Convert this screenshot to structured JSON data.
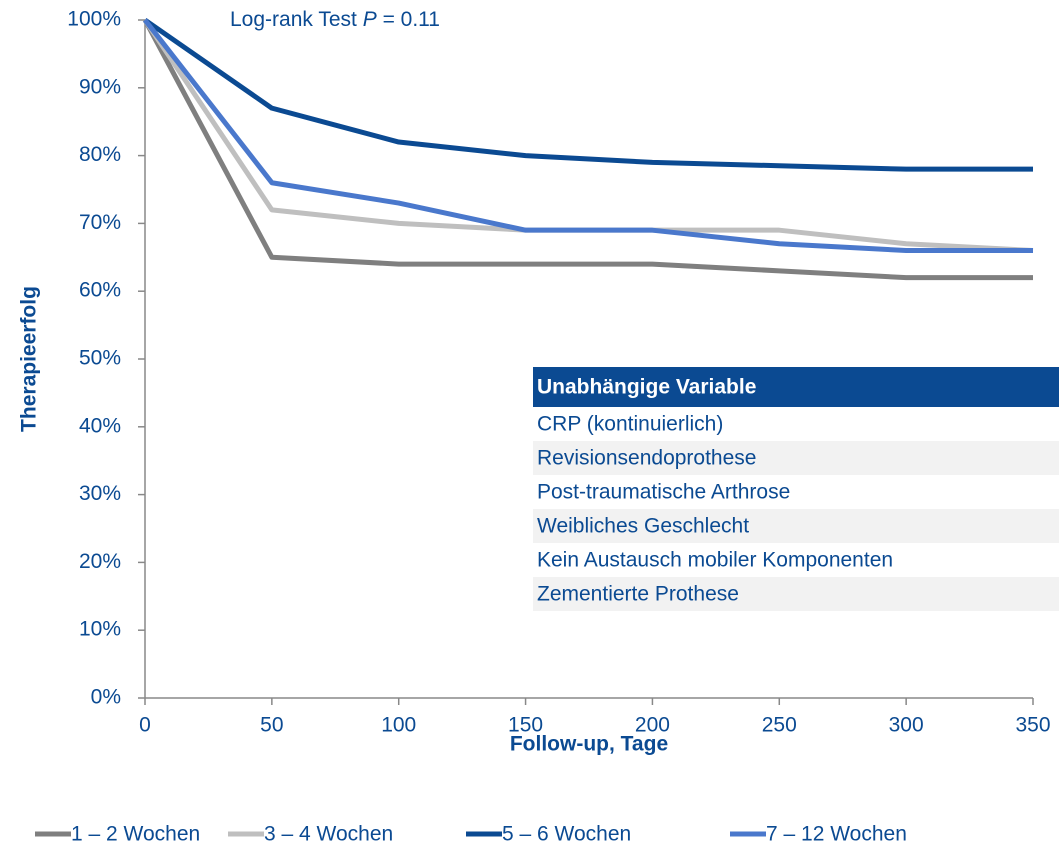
{
  "chart_data": {
    "type": "line",
    "annotation": {
      "prefix": "Log-rank Test",
      "italic": "P",
      "suffix": "= 0.11"
    },
    "xlabel": "Follow-up, Tage",
    "ylabel": "Therapieerfolg",
    "x": [
      0,
      50,
      100,
      150,
      200,
      250,
      300,
      350
    ],
    "series": [
      {
        "name": "1 – 2 Wochen",
        "color": "#7f7f7f",
        "values": [
          100,
          65,
          64,
          64,
          64,
          63,
          62,
          62
        ]
      },
      {
        "name": "3 – 4 Wochen",
        "color": "#bfbfbf",
        "values": [
          100,
          72,
          70,
          69,
          69,
          69,
          67,
          66
        ]
      },
      {
        "name": "5 – 6 Wochen",
        "color": "#0b4a92",
        "values": [
          100,
          87,
          82,
          80,
          79,
          78.5,
          78,
          78
        ]
      },
      {
        "name": "7 – 12 Wochen",
        "color": "#4a78cc",
        "values": [
          100,
          76,
          73,
          69,
          69,
          67,
          66,
          66
        ]
      }
    ],
    "xlim": [
      0,
      350
    ],
    "xticks": [
      0,
      50,
      100,
      150,
      200,
      250,
      300,
      350
    ],
    "ylim": [
      0,
      100
    ],
    "yticks": [
      {
        "value": 0,
        "label": "0%"
      },
      {
        "value": 10,
        "label": "10%"
      },
      {
        "value": 20,
        "label": "20%"
      },
      {
        "value": 30,
        "label": "30%"
      },
      {
        "value": 40,
        "label": "40%"
      },
      {
        "value": 50,
        "label": "50%"
      },
      {
        "value": 60,
        "label": "60%"
      },
      {
        "value": 70,
        "label": "70%"
      },
      {
        "value": 80,
        "label": "80%"
      },
      {
        "value": 90,
        "label": "90%"
      },
      {
        "value": 100,
        "label": "100%"
      }
    ],
    "grid": false,
    "legend": "bottom",
    "table": {
      "header": "Unabhängige Variable",
      "rows": [
        "CRP (kontinuierlich)",
        "Revisionsendoprothese",
        "Post-traumatische Arthrose",
        "Weibliches Geschlecht",
        "Kein Austausch mobiler Komponenten",
        "Zementierte Prothese"
      ]
    }
  }
}
